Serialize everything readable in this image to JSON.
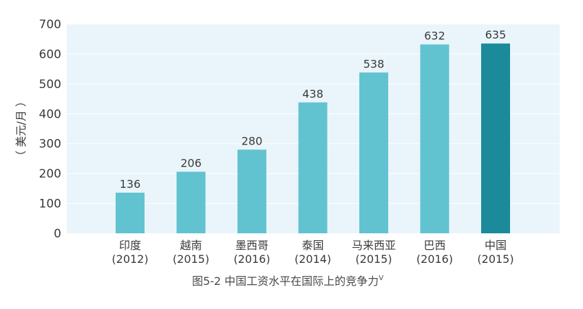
{
  "chart_data": {
    "type": "bar",
    "title": "图5-2 中国工资水平在国际上的竞争力",
    "title_superscript": "V",
    "ylabel": "（ 美元/月 ）",
    "xlabel": "",
    "ylim": [
      0,
      700
    ],
    "yticks": [
      0,
      100,
      200,
      300,
      400,
      500,
      600,
      700
    ],
    "grid": true,
    "categories": [
      {
        "name": "印度",
        "year": "(2012)"
      },
      {
        "name": "越南",
        "year": "(2015)"
      },
      {
        "name": "墨西哥",
        "year": "(2016)"
      },
      {
        "name": "泰国",
        "year": "(2014)"
      },
      {
        "name": "马来西亚",
        "year": "(2015)"
      },
      {
        "name": "巴西",
        "year": "(2016)"
      },
      {
        "name": "中国",
        "year": "(2015)"
      }
    ],
    "values": [
      136,
      206,
      280,
      438,
      538,
      632,
      635
    ],
    "highlight_index": 6,
    "colors": {
      "bar": "#62c3d0",
      "highlight": "#1b8a9a",
      "plot_background": "#e9f5fb",
      "grid": "#ffffff",
      "text": "#3a3a3a",
      "title": "#4a4a4a"
    }
  }
}
